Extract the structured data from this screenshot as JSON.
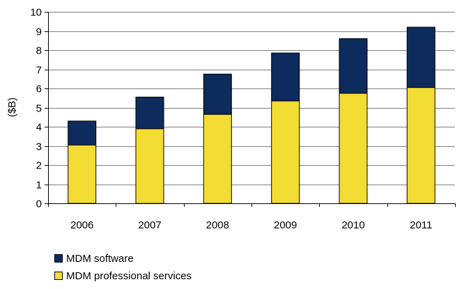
{
  "chart_data": {
    "type": "bar",
    "stacked": true,
    "categories": [
      "2006",
      "2007",
      "2008",
      "2009",
      "2010",
      "2011"
    ],
    "series": [
      {
        "name": "MDM professional services",
        "color": "#F3DC33",
        "values": [
          3.05,
          3.9,
          4.65,
          5.35,
          5.75,
          6.05
        ]
      },
      {
        "name": "MDM software",
        "color": "#0D2B5C",
        "values": [
          1.25,
          1.65,
          2.1,
          2.5,
          2.85,
          3.15
        ]
      }
    ],
    "title": "",
    "xlabel": "",
    "ylabel": "($B)",
    "ylim": [
      0,
      10
    ],
    "yticks": [
      "0",
      "1",
      "2",
      "3",
      "4",
      "5",
      "6",
      "7",
      "8",
      "9",
      "10"
    ],
    "grid": true,
    "legend_position": "bottom-left"
  }
}
